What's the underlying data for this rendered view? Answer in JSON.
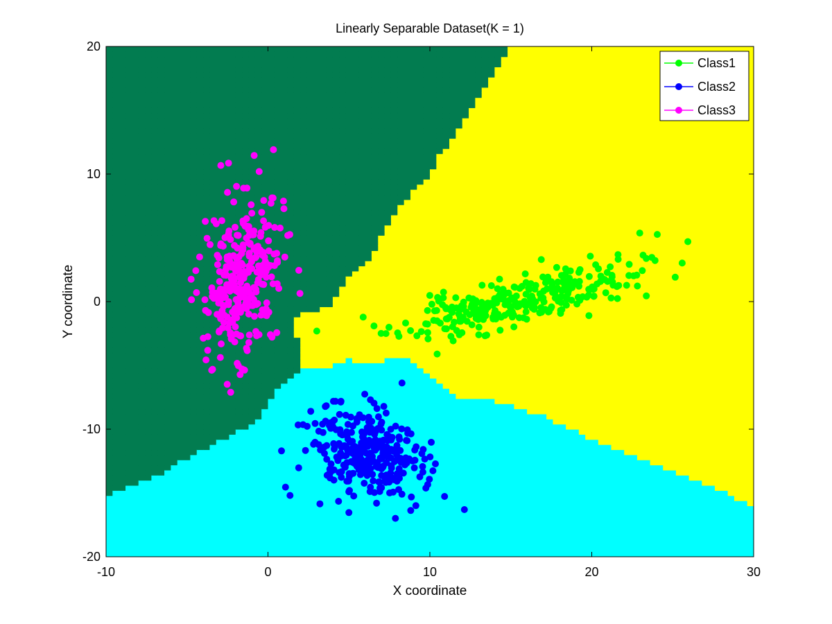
{
  "chart_data": {
    "type": "scatter",
    "title": "Linearly Separable Dataset(K = 1)",
    "xlabel": "X coordinate",
    "ylabel": "Y coordinate",
    "xlim": [
      -10,
      30
    ],
    "ylim": [
      -20,
      20
    ],
    "xticks": [
      -10,
      0,
      10,
      20,
      30
    ],
    "yticks": [
      -20,
      -10,
      0,
      10,
      20
    ],
    "grid": false,
    "legend_position": "top-right",
    "decision_regions": [
      {
        "label": "Class1",
        "color": "#ffff00"
      },
      {
        "label": "Class2",
        "color": "#00ffff"
      },
      {
        "label": "Class3",
        "color": "#027c50"
      }
    ],
    "series": [
      {
        "name": "Class1",
        "color": "#00ff00",
        "center": [
          15.5,
          0.0
        ],
        "sd": [
          3.6,
          1.4
        ],
        "rho": 0.75,
        "count": 300,
        "seed": 11
      },
      {
        "name": "Class2",
        "color": "#0000ff",
        "center": [
          6.0,
          -12.0
        ],
        "sd": [
          1.8,
          1.9
        ],
        "rho": -0.2,
        "count": 300,
        "seed": 23
      },
      {
        "name": "Class3",
        "color": "#ff00ff",
        "center": [
          -1.5,
          2.0
        ],
        "sd": [
          1.2,
          3.2
        ],
        "rho": 0.25,
        "count": 300,
        "seed": 37
      }
    ]
  }
}
